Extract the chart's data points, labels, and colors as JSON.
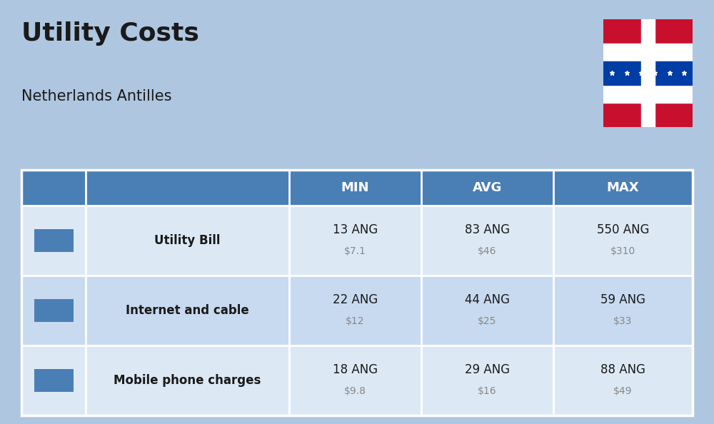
{
  "title": "Utility Costs",
  "subtitle": "Netherlands Antilles",
  "background_color": "#aec6e0",
  "header_color": "#4a7fb5",
  "header_text_color": "#ffffff",
  "row_color_1": "#dce9f5",
  "row_color_2": "#c8daf0",
  "text_color_dark": "#1a1a1a",
  "text_color_usd": "#888888",
  "col_headers": [
    "MIN",
    "AVG",
    "MAX"
  ],
  "rows": [
    {
      "label": "Utility Bill",
      "min_ang": "13 ANG",
      "min_usd": "$7.1",
      "avg_ang": "83 ANG",
      "avg_usd": "$46",
      "max_ang": "550 ANG",
      "max_usd": "$310"
    },
    {
      "label": "Internet and cable",
      "min_ang": "22 ANG",
      "min_usd": "$12",
      "avg_ang": "44 ANG",
      "avg_usd": "$25",
      "max_ang": "59 ANG",
      "max_usd": "$33"
    },
    {
      "label": "Mobile phone charges",
      "min_ang": "18 ANG",
      "min_usd": "$9.8",
      "avg_ang": "29 ANG",
      "avg_usd": "$16",
      "max_ang": "88 ANG",
      "max_usd": "$49"
    }
  ]
}
